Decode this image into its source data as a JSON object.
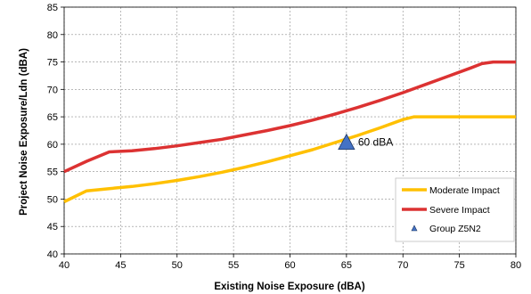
{
  "chart_data": {
    "type": "line",
    "xlabel": "Existing Noise Exposure (dBA)",
    "ylabel": "Project Noise Exposure/Ldn (dBA)",
    "xlim": [
      40,
      80
    ],
    "ylim": [
      40,
      85
    ],
    "x_ticks": [
      40,
      45,
      50,
      55,
      60,
      65,
      70,
      75,
      80
    ],
    "y_ticks": [
      40,
      45,
      50,
      55,
      60,
      65,
      70,
      75,
      80,
      85
    ],
    "grid": true,
    "legend_position": "lower-right",
    "series": [
      {
        "name": "Moderate Impact",
        "color": "#FFC000",
        "kind": "line",
        "x": [
          40,
          42,
          44,
          46,
          48,
          50,
          52,
          54,
          56,
          58,
          60,
          62,
          64,
          66,
          68,
          70,
          71,
          72,
          74,
          76,
          78,
          80
        ],
        "y": [
          49.5,
          51.5,
          51.9,
          52.3,
          52.8,
          53.4,
          54.1,
          54.9,
          55.8,
          56.8,
          57.9,
          59.0,
          60.3,
          61.6,
          63.0,
          64.5,
          65.0,
          65.0,
          65.0,
          65.0,
          65.0,
          65.0
        ]
      },
      {
        "name": "Severe Impact",
        "color": "#DC3232",
        "kind": "line",
        "x": [
          40,
          42,
          44,
          46,
          48,
          50,
          52,
          54,
          56,
          58,
          60,
          62,
          64,
          66,
          68,
          70,
          72,
          74,
          76,
          77,
          78,
          80
        ],
        "y": [
          55.0,
          56.9,
          58.6,
          58.8,
          59.2,
          59.7,
          60.3,
          60.9,
          61.7,
          62.5,
          63.4,
          64.4,
          65.5,
          66.7,
          68.0,
          69.4,
          70.9,
          72.4,
          73.9,
          74.7,
          75.0,
          75.0
        ]
      },
      {
        "name": "Group Z5N2",
        "color": "#4472C4",
        "kind": "marker",
        "x": [
          65
        ],
        "y": [
          60.2
        ]
      }
    ],
    "annotations": [
      {
        "text": "60 dBA",
        "x": 65,
        "y": 60.2
      }
    ]
  }
}
